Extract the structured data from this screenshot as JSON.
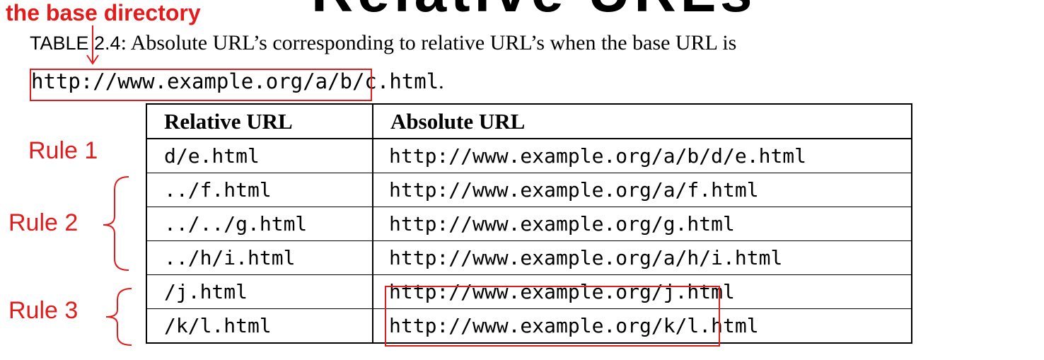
{
  "slide_title": "Relative URLs",
  "annotations": {
    "base_directory_label": "the base directory",
    "rule_1": "Rule 1",
    "rule_2": "Rule 2",
    "rule_3": "Rule 3",
    "accent_color": "#e31b1b"
  },
  "caption": {
    "prefix": "TABLE 2.4",
    "text": ": Absolute URL’s corresponding to relative URL’s when the base URL is",
    "base_url": "http://www.example.org/a/b/c.html",
    "end": "."
  },
  "table": {
    "headers": [
      "Relative URL",
      "Absolute URL"
    ],
    "rows": [
      [
        "d/e.html",
        "http://www.example.org/a/b/d/e.html"
      ],
      [
        "../f.html",
        "http://www.example.org/a/f.html"
      ],
      [
        "../../g.html",
        "http://www.example.org/g.html"
      ],
      [
        "../h/i.html",
        "http://www.example.org/a/h/i.html"
      ],
      [
        "/j.html",
        "http://www.example.org/j.html"
      ],
      [
        "/k/l.html",
        "http://www.example.org/k/l.html"
      ]
    ]
  }
}
